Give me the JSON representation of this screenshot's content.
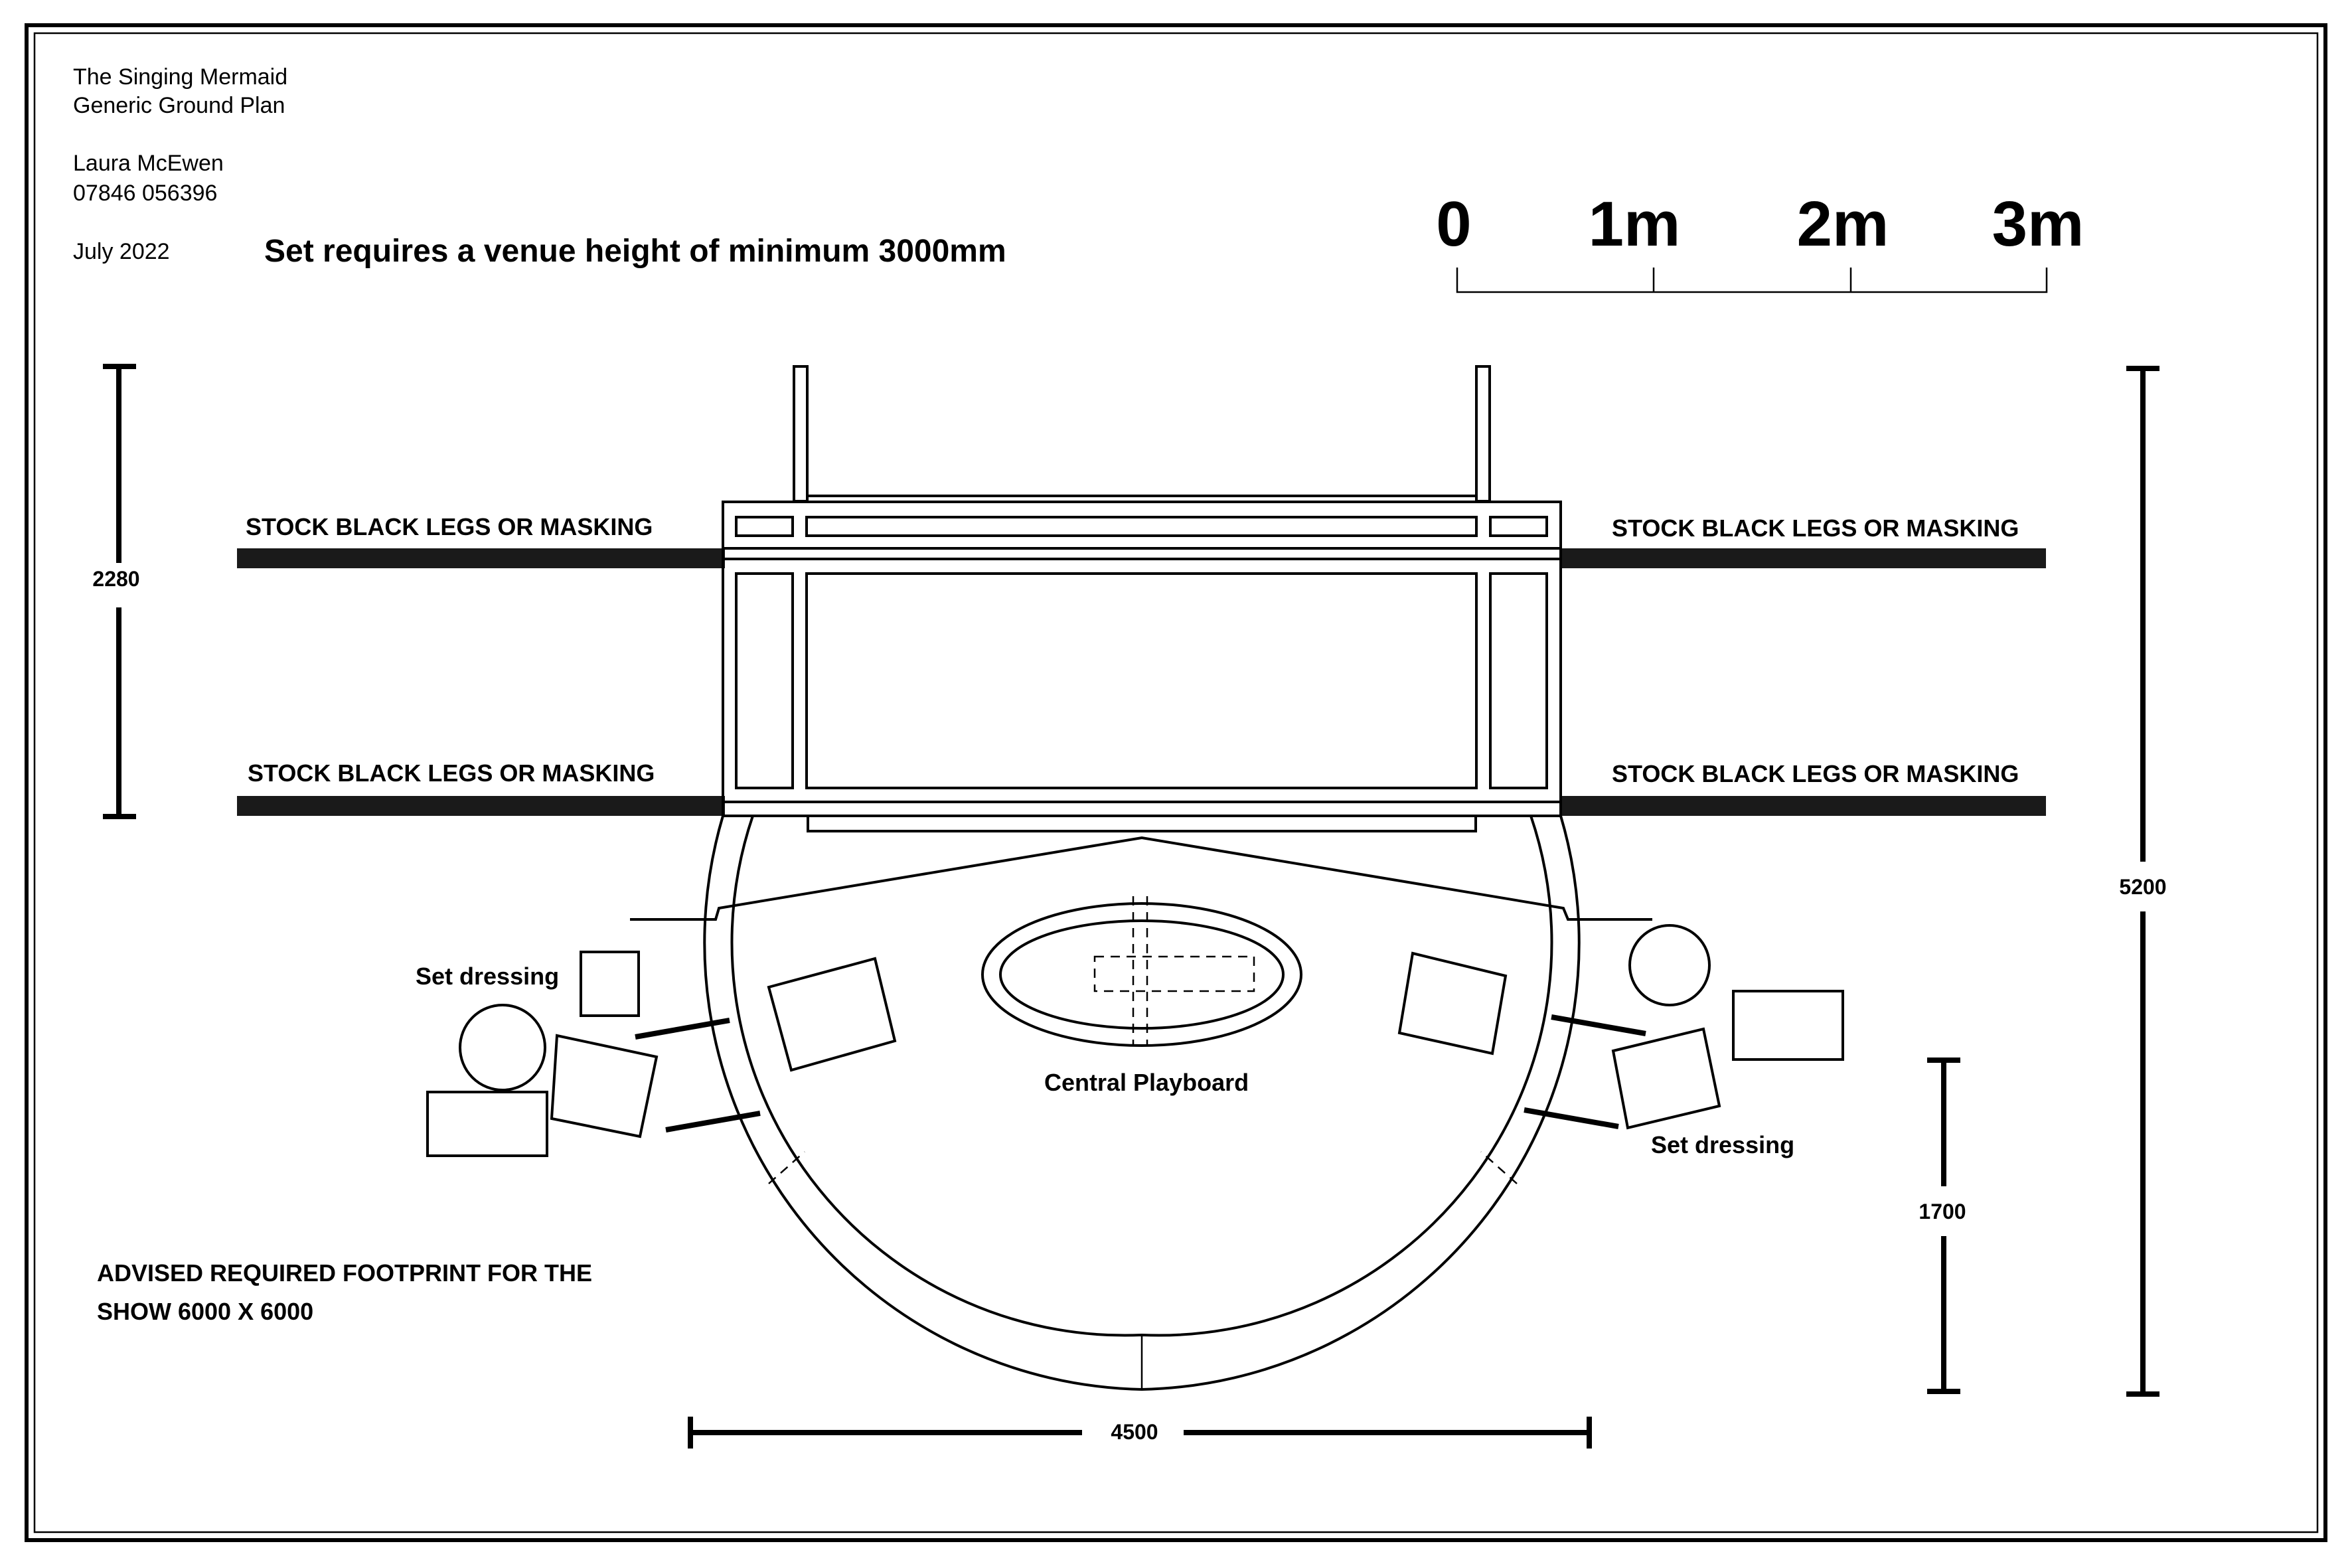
{
  "title_block": {
    "show": "The Singing Mermaid",
    "drawing": "Generic Ground Plan",
    "designer": "Laura McEwen",
    "phone": "07846 056396",
    "date": "July 2022"
  },
  "height_note": "Set requires a venue height of minimum 3000mm",
  "scale_bar": {
    "labels": [
      "0",
      "1m",
      "2m",
      "3m"
    ]
  },
  "masking_label": "STOCK BLACK LEGS OR MASKING",
  "labels": {
    "set_dressing_left": "Set dressing",
    "set_dressing_right": "Set dressing",
    "central_playboard": "Central Playboard"
  },
  "footprint_note": {
    "line1": "ADVISED REQUIRED FOOTPRINT FOR THE",
    "line2": "SHOW 6000 X 6000"
  },
  "dimensions": {
    "left_depth": "2280",
    "right_depth": "5200",
    "inner_depth": "1700",
    "width": "4500"
  }
}
